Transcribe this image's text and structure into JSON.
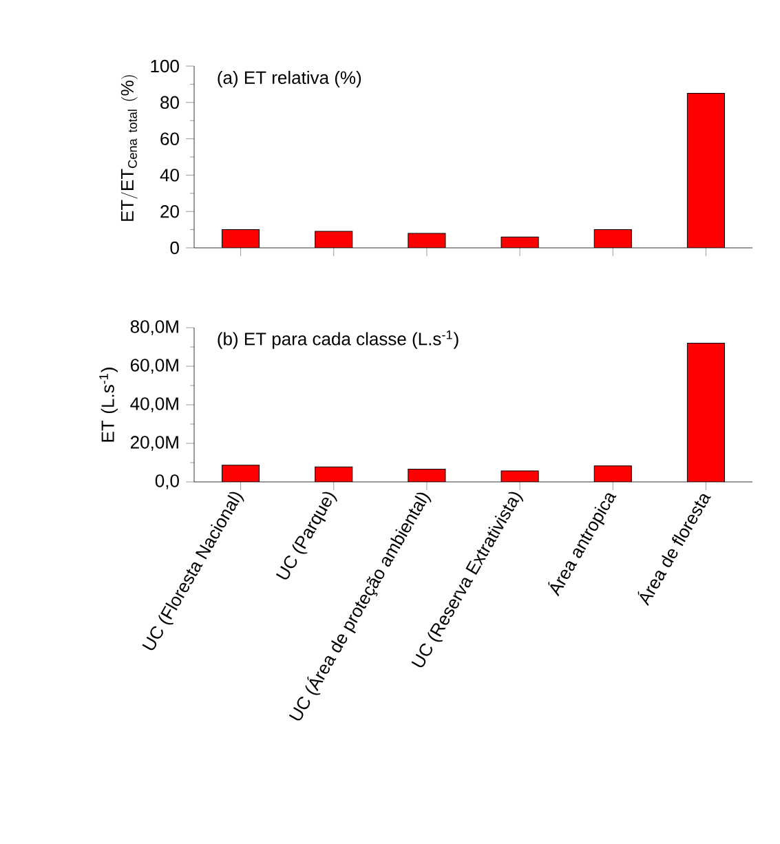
{
  "chart_data": [
    {
      "type": "bar",
      "title": "(a) ET relativa (%)",
      "ylabel": "\\mathrm{ET/ET_{Cena\\ total}\\ (\\%)}",
      "categories": [
        null,
        null,
        null,
        null,
        null,
        null
      ],
      "values": [
        10,
        9.1,
        8,
        6,
        10,
        85
      ],
      "color": "#ff0000",
      "ylim": [
        0,
        100
      ],
      "yticks": [
        0,
        20,
        40,
        60,
        80,
        100
      ],
      "tick_labels": "y"
    },
    {
      "type": "bar",
      "title": "(b) ET para cada classe (L.s$^{-1}$)",
      "ylabel": "ET (L.s$^{-1}$)",
      "categories": [
        "UC (Floresta Nacional)",
        "UC (Parque)",
        "UC (Área de proteção ambiental)",
        "UC (Reserva Extrativista)",
        "Área antropica",
        "Área de floresta"
      ],
      "values": [
        8700000,
        7800000,
        6600000,
        5700000,
        8300000,
        72000000
      ],
      "color": "#ff0000",
      "ylim": [
        0,
        80000000
      ],
      "yticks": [
        {
          "value": 0,
          "label": "0,0"
        },
        {
          "value": 20000000,
          "label": "20,0M"
        },
        {
          "value": 40000000,
          "label": "40,0M"
        },
        {
          "value": 60000000,
          "label": "60,0M"
        },
        {
          "value": 80000000,
          "label": "80,0M"
        }
      ]
    }
  ]
}
